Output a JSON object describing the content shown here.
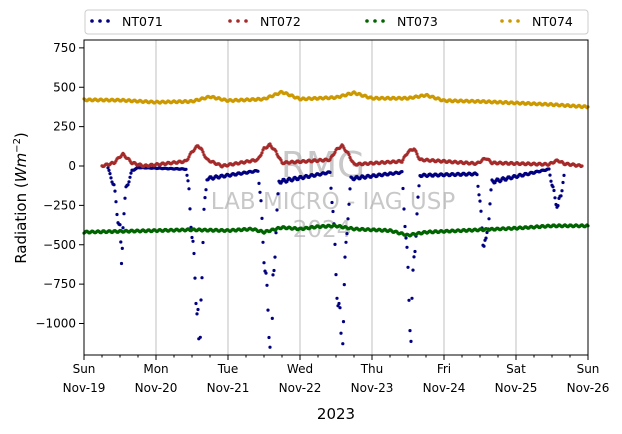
{
  "chart_data": {
    "type": "scatter",
    "xlabel": "2023",
    "ylabel": "Radiation",
    "ylabel_unit": "Wm",
    "ylabel_exp": "−2",
    "ylim": [
      -1200,
      800
    ],
    "yticks": [
      750,
      500,
      250,
      0,
      -250,
      -500,
      -750,
      -1000
    ],
    "ytick_labels": [
      "750",
      "500",
      "250",
      "0",
      "−250",
      "−500",
      "−750",
      "−1000"
    ],
    "xlim": [
      "2023-11-19",
      "2023-11-26"
    ],
    "xticks": [
      {
        "date": "2023-11-19",
        "day": "Sun",
        "label": "Nov-19"
      },
      {
        "date": "2023-11-20",
        "day": "Mon",
        "label": "Nov-20"
      },
      {
        "date": "2023-11-21",
        "day": "Tue",
        "label": "Nov-21"
      },
      {
        "date": "2023-11-22",
        "day": "Wed",
        "label": "Nov-22"
      },
      {
        "date": "2023-11-23",
        "day": "Thu",
        "label": "Nov-23"
      },
      {
        "date": "2023-11-24",
        "day": "Fri",
        "label": "Nov-24"
      },
      {
        "date": "2023-11-25",
        "day": "Sat",
        "label": "Nov-25"
      },
      {
        "date": "2023-11-26",
        "day": "Sun",
        "label": "Nov-26"
      }
    ],
    "grid": "vertical",
    "legend_position": "top",
    "series": [
      {
        "name": "NT071",
        "color": "#000080",
        "points": [
          [
            "2023-11-19 08:00",
            -12
          ],
          [
            "2023-11-19 10:00",
            -130
          ],
          [
            "2023-11-19 11:00",
            -280
          ],
          [
            "2023-11-19 12:00",
            -420
          ],
          [
            "2023-11-19 12:30",
            -600
          ],
          [
            "2023-11-19 13:00",
            -350
          ],
          [
            "2023-11-19 14:00",
            -150
          ],
          [
            "2023-11-19 16:00",
            -30
          ],
          [
            "2023-11-19 18:00",
            -10
          ],
          [
            "2023-11-20 10:00",
            -20
          ],
          [
            "2023-11-20 11:00",
            -150
          ],
          [
            "2023-11-20 12:00",
            -450
          ],
          [
            "2023-11-20 13:00",
            -700
          ],
          [
            "2023-11-20 14:00",
            -950
          ],
          [
            "2023-11-20 14:30",
            -1150
          ],
          [
            "2023-11-20 15:00",
            -800
          ],
          [
            "2023-11-20 16:00",
            -300
          ],
          [
            "2023-11-20 17:00",
            -80
          ],
          [
            "2023-11-21 10:00",
            -30
          ],
          [
            "2023-11-21 11:00",
            -250
          ],
          [
            "2023-11-21 12:00",
            -550
          ],
          [
            "2023-11-21 13:00",
            -850
          ],
          [
            "2023-11-21 14:00",
            -1050
          ],
          [
            "2023-11-21 14:30",
            -1180
          ],
          [
            "2023-11-21 15:00",
            -750
          ],
          [
            "2023-11-21 16:00",
            -400
          ],
          [
            "2023-11-21 17:00",
            -100
          ],
          [
            "2023-11-22 10:00",
            -40
          ],
          [
            "2023-11-22 11:00",
            -300
          ],
          [
            "2023-11-22 12:00",
            -650
          ],
          [
            "2023-11-22 13:00",
            -950
          ],
          [
            "2023-11-22 14:00",
            -1150
          ],
          [
            "2023-11-22 14:30",
            -1050
          ],
          [
            "2023-11-22 15:00",
            -650
          ],
          [
            "2023-11-22 16:00",
            -300
          ],
          [
            "2023-11-22 17:00",
            -80
          ],
          [
            "2023-11-23 10:00",
            -40
          ],
          [
            "2023-11-23 11:00",
            -350
          ],
          [
            "2023-11-23 12:00",
            -700
          ],
          [
            "2023-11-23 13:00",
            -1050
          ],
          [
            "2023-11-23 14:00",
            -600
          ],
          [
            "2023-11-23 15:00",
            -300
          ],
          [
            "2023-11-23 16:00",
            -60
          ],
          [
            "2023-11-24 11:00",
            -50
          ],
          [
            "2023-11-24 12:00",
            -250
          ],
          [
            "2023-11-24 13:00",
            -450
          ],
          [
            "2023-11-24 14:00",
            -520
          ],
          [
            "2023-11-24 15:00",
            -300
          ],
          [
            "2023-11-24 16:00",
            -100
          ],
          [
            "2023-11-25 11:00",
            -20
          ],
          [
            "2023-11-25 12:00",
            -120
          ],
          [
            "2023-11-25 13:00",
            -200
          ],
          [
            "2023-11-25 14:00",
            -260
          ],
          [
            "2023-11-25 15:00",
            -180
          ],
          [
            "2023-11-25 16:00",
            -60
          ]
        ]
      },
      {
        "name": "NT072",
        "color": "#a52a2a",
        "points": [
          [
            "2023-11-19 06:00",
            0
          ],
          [
            "2023-11-19 10:00",
            20
          ],
          [
            "2023-11-19 12:00",
            60
          ],
          [
            "2023-11-19 13:00",
            75
          ],
          [
            "2023-11-19 16:00",
            20
          ],
          [
            "2023-11-19 20:00",
            0
          ],
          [
            "2023-11-20 10:00",
            30
          ],
          [
            "2023-11-20 12:00",
            90
          ],
          [
            "2023-11-20 14:00",
            130
          ],
          [
            "2023-11-20 15:00",
            110
          ],
          [
            "2023-11-20 17:00",
            40
          ],
          [
            "2023-11-20 22:00",
            0
          ],
          [
            "2023-11-21 10:00",
            40
          ],
          [
            "2023-11-21 12:00",
            110
          ],
          [
            "2023-11-21 14:00",
            135
          ],
          [
            "2023-11-21 16:00",
            90
          ],
          [
            "2023-11-21 18:00",
            20
          ],
          [
            "2023-11-22 10:00",
            40
          ],
          [
            "2023-11-22 12:00",
            100
          ],
          [
            "2023-11-22 14:00",
            130
          ],
          [
            "2023-11-22 16:00",
            80
          ],
          [
            "2023-11-22 18:00",
            10
          ],
          [
            "2023-11-23 10:00",
            30
          ],
          [
            "2023-11-23 12:00",
            90
          ],
          [
            "2023-11-23 14:00",
            110
          ],
          [
            "2023-11-23 16:00",
            40
          ],
          [
            "2023-11-24 11:00",
            15
          ],
          [
            "2023-11-24 13:00",
            40
          ],
          [
            "2023-11-24 14:00",
            50
          ],
          [
            "2023-11-24 16:00",
            20
          ],
          [
            "2023-11-25 11:00",
            10
          ],
          [
            "2023-11-25 13:00",
            30
          ],
          [
            "2023-11-25 14:00",
            35
          ],
          [
            "2023-11-25 16:00",
            15
          ],
          [
            "2023-11-25 22:00",
            0
          ]
        ]
      },
      {
        "name": "NT073",
        "color": "#006400",
        "points": [
          [
            "2023-11-19 00:00",
            -420
          ],
          [
            "2023-11-19 12:00",
            -415
          ],
          [
            "2023-11-20 00:00",
            -410
          ],
          [
            "2023-11-20 12:00",
            -405
          ],
          [
            "2023-11-21 00:00",
            -410
          ],
          [
            "2023-11-21 08:00",
            -400
          ],
          [
            "2023-11-21 12:00",
            -420
          ],
          [
            "2023-11-21 18:00",
            -390
          ],
          [
            "2023-11-22 00:00",
            -400
          ],
          [
            "2023-11-22 06:00",
            -385
          ],
          [
            "2023-11-22 12:00",
            -380
          ],
          [
            "2023-11-22 18:00",
            -400
          ],
          [
            "2023-11-23 00:00",
            -405
          ],
          [
            "2023-11-23 06:00",
            -410
          ],
          [
            "2023-11-23 12:00",
            -440
          ],
          [
            "2023-11-23 18:00",
            -420
          ],
          [
            "2023-11-24 00:00",
            -415
          ],
          [
            "2023-11-24 12:00",
            -405
          ],
          [
            "2023-11-25 00:00",
            -395
          ],
          [
            "2023-11-25 12:00",
            -380
          ],
          [
            "2023-11-26 00:00",
            -380
          ]
        ]
      },
      {
        "name": "NT074",
        "color": "#cc9900",
        "points": [
          [
            "2023-11-19 00:00",
            420
          ],
          [
            "2023-11-19 12:00",
            418
          ],
          [
            "2023-11-20 00:00",
            405
          ],
          [
            "2023-11-20 12:00",
            410
          ],
          [
            "2023-11-20 18:00",
            440
          ],
          [
            "2023-11-21 00:00",
            415
          ],
          [
            "2023-11-21 12:00",
            425
          ],
          [
            "2023-11-21 18:00",
            470
          ],
          [
            "2023-11-22 00:00",
            425
          ],
          [
            "2023-11-22 12:00",
            435
          ],
          [
            "2023-11-22 18:00",
            465
          ],
          [
            "2023-11-23 00:00",
            430
          ],
          [
            "2023-11-23 12:00",
            430
          ],
          [
            "2023-11-23 18:00",
            450
          ],
          [
            "2023-11-24 00:00",
            415
          ],
          [
            "2023-11-24 12:00",
            410
          ],
          [
            "2023-11-25 00:00",
            400
          ],
          [
            "2023-11-25 12:00",
            390
          ],
          [
            "2023-11-26 00:00",
            375
          ]
        ]
      }
    ]
  },
  "watermark": {
    "line1": "RMG",
    "line2": "LAB MICRO - IAG USP",
    "line3": "2024"
  }
}
